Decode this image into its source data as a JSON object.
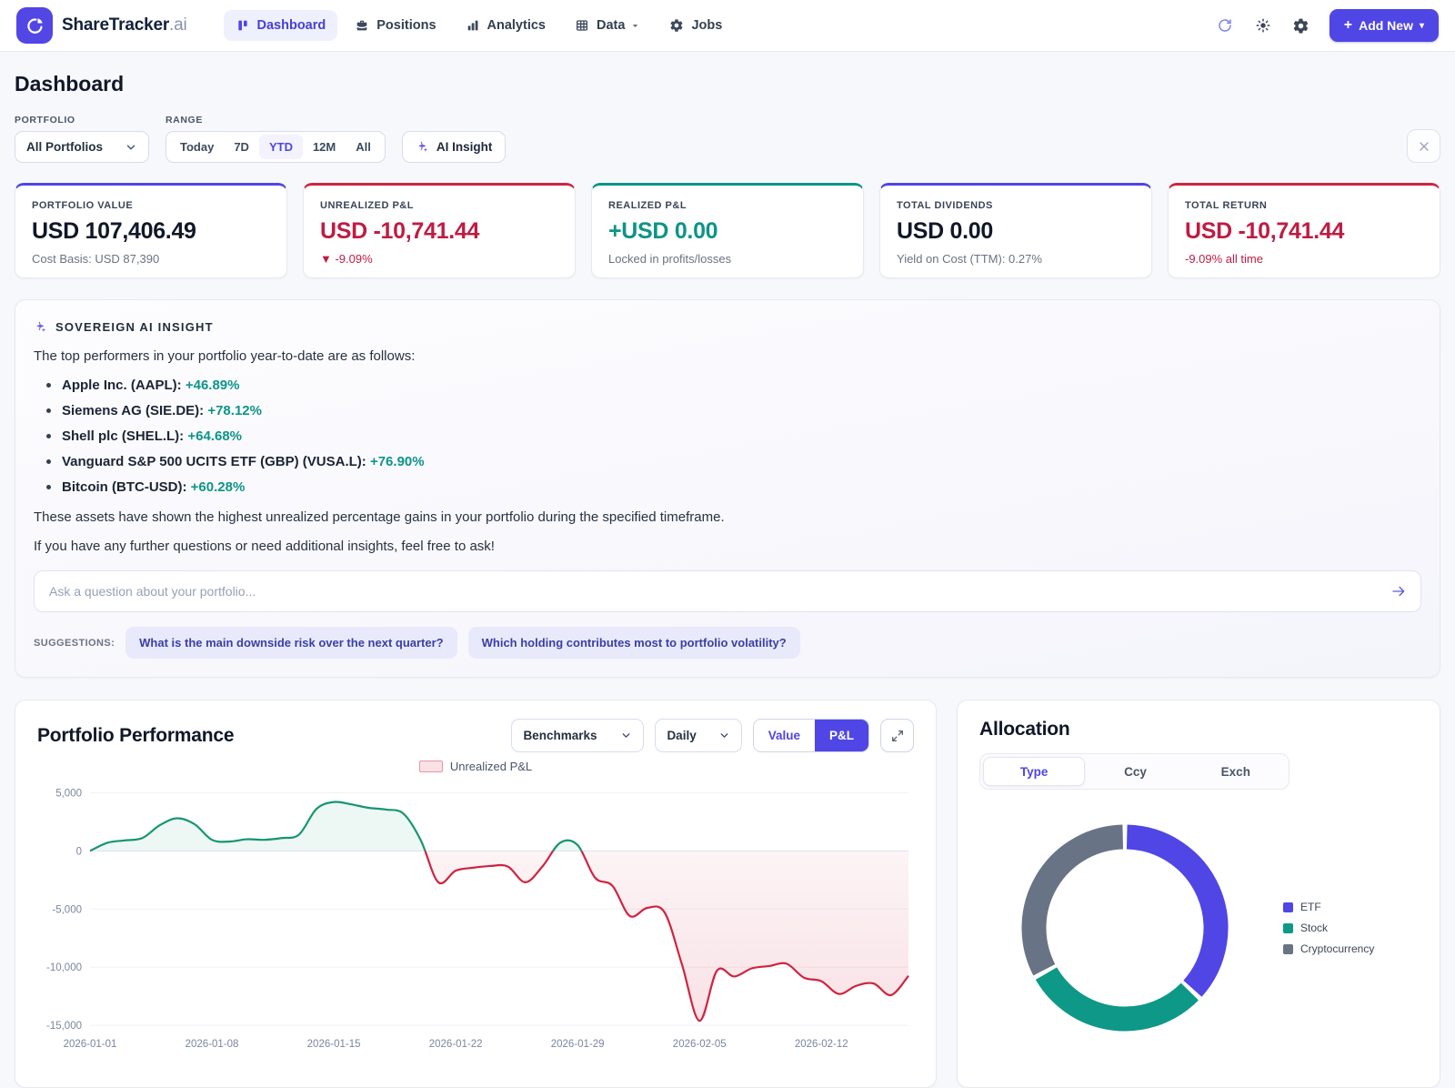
{
  "app": {
    "brand": "ShareTracker",
    "brand_suffix": ".ai"
  },
  "nav": [
    {
      "label": "Dashboard",
      "active": true
    },
    {
      "label": "Positions",
      "active": false
    },
    {
      "label": "Analytics",
      "active": false
    },
    {
      "label": "Data",
      "active": false
    },
    {
      "label": "Jobs",
      "active": false
    }
  ],
  "header": {
    "add_new_label": "Add New",
    "plus_glyph": "+",
    "caret_glyph": "▾"
  },
  "page": {
    "title": "Dashboard"
  },
  "filters": {
    "portfolio_label": "PORTFOLIO",
    "portfolio_value": "All Portfolios",
    "range_label": "RANGE",
    "ranges": [
      "Today",
      "7D",
      "YTD",
      "12M",
      "All"
    ],
    "active_range": "YTD",
    "ai_insight_label": "AI Insight"
  },
  "kpis": [
    {
      "label": "PORTFOLIO VALUE",
      "value": "USD 107,406.49",
      "sub": "Cost Basis: USD 87,390",
      "accent": "#4f46e5",
      "value_color": "#101828",
      "sub_color": "#6b7280"
    },
    {
      "label": "UNREALIZED P&L",
      "value": "USD -10,741.44",
      "sub": "▼ -9.09%",
      "accent": "#cf2440",
      "value_color": "#bf1c42",
      "sub_color": "#bf1c42"
    },
    {
      "label": "REALIZED P&L",
      "value": "+USD 0.00",
      "sub": "Locked in profits/losses",
      "accent": "#0d9488",
      "value_color": "#0d9488",
      "sub_color": "#6b7280"
    },
    {
      "label": "TOTAL DIVIDENDS",
      "value": "USD 0.00",
      "sub": "Yield on Cost (TTM): 0.27%",
      "accent": "#4f46e5",
      "value_color": "#101828",
      "sub_color": "#6b7280"
    },
    {
      "label": "TOTAL RETURN",
      "value": "USD -10,741.44",
      "sub": "-9.09% all time",
      "accent": "#cf2440",
      "value_color": "#bf1c42",
      "sub_color": "#bf1c42"
    }
  ],
  "ai_insight": {
    "title": "SOVEREIGN AI INSIGHT",
    "intro": "The top performers in your portfolio year-to-date are as follows:",
    "items": [
      {
        "name": "Apple Inc. (AAPL):",
        "gain": "+46.89%"
      },
      {
        "name": "Siemens AG (SIE.DE):",
        "gain": "+78.12%"
      },
      {
        "name": "Shell plc (SHEL.L):",
        "gain": "+64.68%"
      },
      {
        "name": "Vanguard S&P 500 UCITS ETF (GBP) (VUSA.L):",
        "gain": "+76.90%"
      },
      {
        "name": "Bitcoin (BTC-USD):",
        "gain": "+60.28%"
      }
    ],
    "outro1": "These assets have shown the highest unrealized percentage gains in your portfolio during the specified timeframe.",
    "outro2": "If you have any further questions or need additional insights, feel free to ask!",
    "input_placeholder": "Ask a question about your portfolio...",
    "suggestions_label": "SUGGESTIONS:",
    "suggestions": [
      "What is the main downside risk over the next quarter?",
      "Which holding contributes most to portfolio volatility?"
    ]
  },
  "performance": {
    "title": "Portfolio Performance",
    "benchmark_select": "Benchmarks",
    "interval_select": "Daily",
    "toggle": [
      "Value",
      "P&L"
    ],
    "toggle_active": "P&L",
    "legend": "Unrealized P&L"
  },
  "allocation": {
    "title": "Allocation",
    "tabs": [
      "Type",
      "Ccy",
      "Exch"
    ],
    "active_tab": "Type"
  },
  "chart_data": [
    {
      "type": "area",
      "title": "Portfolio Performance — Unrealized P&L (USD, daily)",
      "legend": "Unrealized P&L",
      "x": [
        "2026-01-01",
        "2026-01-02",
        "2026-01-03",
        "2026-01-04",
        "2026-01-05",
        "2026-01-06",
        "2026-01-07",
        "2026-01-08",
        "2026-01-09",
        "2026-01-10",
        "2026-01-11",
        "2026-01-12",
        "2026-01-13",
        "2026-01-14",
        "2026-01-15",
        "2026-01-16",
        "2026-01-17",
        "2026-01-18",
        "2026-01-19",
        "2026-01-20",
        "2026-01-21",
        "2026-01-22",
        "2026-01-23",
        "2026-01-24",
        "2026-01-25",
        "2026-01-26",
        "2026-01-27",
        "2026-01-28",
        "2026-01-29",
        "2026-01-30",
        "2026-01-31",
        "2026-02-01",
        "2026-02-02",
        "2026-02-03",
        "2026-02-04",
        "2026-02-05",
        "2026-02-06",
        "2026-02-07",
        "2026-02-08",
        "2026-02-09",
        "2026-02-10",
        "2026-02-11",
        "2026-02-12",
        "2026-02-13",
        "2026-02-14",
        "2026-02-15",
        "2026-02-16",
        "2026-02-17"
      ],
      "values": [
        0,
        700,
        900,
        1100,
        2200,
        2800,
        2300,
        950,
        800,
        1000,
        950,
        1100,
        1400,
        3600,
        4200,
        4000,
        3700,
        3550,
        3200,
        900,
        -2700,
        -1700,
        -1450,
        -1300,
        -1350,
        -2700,
        -1300,
        700,
        500,
        -2300,
        -3000,
        -5600,
        -4900,
        -5300,
        -9800,
        -14600,
        -10300,
        -10800,
        -10100,
        -9900,
        -9700,
        -10900,
        -11200,
        -12300,
        -11600,
        -11400,
        -12400,
        -10741.44
      ],
      "x_ticks": [
        "2026-01-01",
        "2026-01-08",
        "2026-01-15",
        "2026-01-22",
        "2026-01-29",
        "2026-02-05",
        "2026-02-12"
      ],
      "x_tick_step": 7,
      "y_ticks": [
        5000,
        0,
        -5000,
        -10000,
        -15000
      ],
      "ylim": [
        -15300,
        5500
      ],
      "grid": true,
      "legend_position": "top-center",
      "colors": {
        "positive": "#179571",
        "negative": "#cf2440"
      }
    },
    {
      "type": "pie",
      "title": "Allocation by Type",
      "labels": [
        "ETF",
        "Stock",
        "Cryptocurrency"
      ],
      "values": [
        37,
        30,
        33
      ],
      "colors": [
        "#4f46e5",
        "#0e9888",
        "#687486"
      ],
      "legend_position": "right"
    }
  ]
}
